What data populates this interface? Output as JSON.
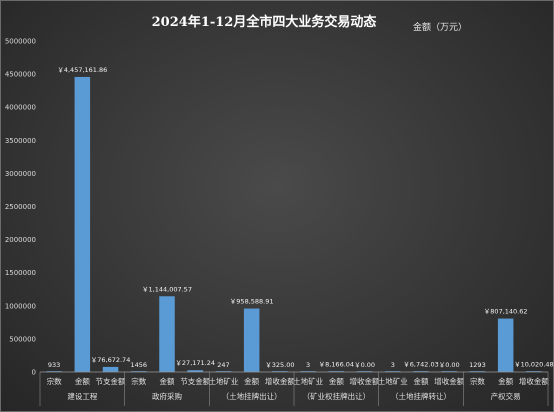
{
  "chart_data": {
    "type": "bar",
    "title": "2024年1-12月全市四大业务交易动态",
    "legend": "金额（万元）",
    "ylim": [
      0,
      5000000
    ],
    "yticks": [
      "0",
      "500000",
      "1000000",
      "1500000",
      "2000000",
      "2500000",
      "3000000",
      "3500000",
      "4000000",
      "4500000",
      "5000000"
    ],
    "bar_color": "#5b9bd5",
    "groups": [
      {
        "name": "建设工程",
        "items": [
          {
            "label": "宗数",
            "value": 933,
            "text": "933"
          },
          {
            "label": "金额",
            "value": 4457161.86,
            "text": "￥4,457,161.86"
          },
          {
            "label": "节支金额",
            "value": 76672.74,
            "text": "￥76,672.74"
          }
        ]
      },
      {
        "name": "政府采购",
        "items": [
          {
            "label": "宗数",
            "value": 1456,
            "text": "1456"
          },
          {
            "label": "金额",
            "value": 1144007.57,
            "text": "￥1,144,007.57"
          },
          {
            "label": "节支金额",
            "value": 27171.24,
            "text": "￥27,171.24"
          }
        ]
      },
      {
        "name": "土地矿业（土地挂牌出让）",
        "items": [
          {
            "label": "土地矿业",
            "value": 247,
            "text": "247"
          },
          {
            "label": "金额（土地挂牌出让）",
            "value": 958588.91,
            "text": "￥958,588.91"
          },
          {
            "label": "增收金额",
            "value": 325.0,
            "text": "￥325.00"
          }
        ]
      },
      {
        "name": "土地矿业（矿业权挂牌出让）",
        "items": [
          {
            "label": "土地矿业",
            "value": 3,
            "text": "3"
          },
          {
            "label": "金额（矿业权挂牌出让）",
            "value": 8166.04,
            "text": "￥8,166.04"
          },
          {
            "label": "增收金额",
            "value": 0.0,
            "text": "￥0.00"
          }
        ]
      },
      {
        "name": "土地矿业（土地挂牌转让）",
        "items": [
          {
            "label": "土地矿业",
            "value": 3,
            "text": "3"
          },
          {
            "label": "金额（土地挂牌转让）",
            "value": 6742.03,
            "text": "￥6,742.03"
          },
          {
            "label": "增收金额",
            "value": 0.0,
            "text": "￥0.00"
          }
        ]
      },
      {
        "name": "产权交易",
        "items": [
          {
            "label": "宗数",
            "value": 1293,
            "text": "1293"
          },
          {
            "label": "金额",
            "value": 807140.62,
            "text": "￥807,140.62"
          },
          {
            "label": "增收金额",
            "value": 10020.48,
            "text": "￥10,020.48"
          }
        ]
      }
    ]
  },
  "x_axis_labels": {
    "row1": [
      [
        "宗数",
        "金额",
        "节支金额"
      ],
      [
        "宗数",
        "金额",
        "节支金额"
      ],
      [
        "土地矿业",
        "金额",
        "增收金额"
      ],
      [
        "土地矿业",
        "金额",
        "增收金额"
      ],
      [
        "土地矿业",
        "金额",
        "增收金额"
      ],
      [
        "宗数",
        "金额",
        "增收金额"
      ]
    ],
    "row2": [
      [
        "建设工程"
      ],
      [
        "政府采购"
      ],
      [
        "（土地挂牌出让）"
      ],
      [
        "（矿业权挂牌出让）"
      ],
      [
        "（土地挂牌转让）"
      ],
      [
        "产权交易"
      ]
    ]
  }
}
